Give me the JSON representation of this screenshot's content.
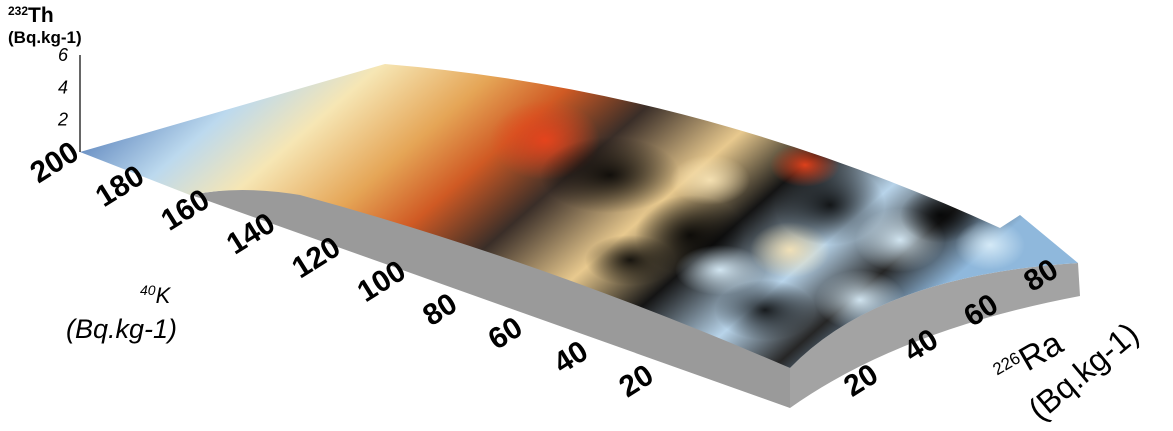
{
  "chart_data": {
    "type": "surface3d",
    "axes": {
      "z": {
        "label_iso": "232",
        "label_sym": "Th",
        "label_unit": "(Bq.kg-1)",
        "ticks": [
          "2",
          "4",
          "6"
        ],
        "range": [
          0,
          6
        ]
      },
      "k": {
        "label_iso": "40",
        "label_sym": "K",
        "label_unit": "(Bq.kg-1)",
        "ticks": [
          "20",
          "40",
          "60",
          "80",
          "100",
          "120",
          "140",
          "160",
          "180",
          "200"
        ],
        "range": [
          10,
          205
        ]
      },
      "ra": {
        "label_iso": "226",
        "label_sym": "Ra",
        "label_unit": "(Bq.kg-1)",
        "ticks": [
          "20",
          "40",
          "60",
          "80"
        ],
        "range": [
          10,
          90
        ]
      }
    },
    "colormap": [
      "#1f4f9e",
      "#b8d8ee",
      "#f7e7b0",
      "#e0a154",
      "#cc4a1c",
      "#1a1a1a"
    ],
    "grid": false,
    "legend": "none"
  }
}
